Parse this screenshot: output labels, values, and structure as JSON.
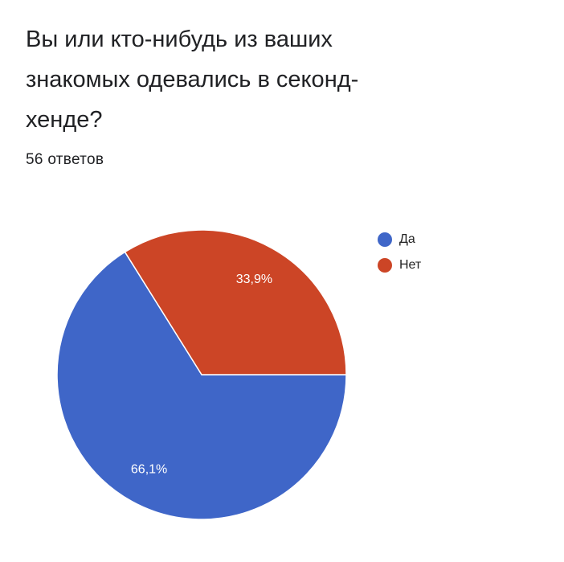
{
  "chart_data": {
    "type": "pie",
    "title": "Вы или кто-нибудь из ваших знакомых одевались в секонд-хенде?",
    "subtitle": "56 ответов",
    "categories": [
      "Да",
      "Нет"
    ],
    "values": [
      66.1,
      33.9
    ],
    "value_labels": [
      "66,1%",
      "33,9%"
    ],
    "colors": [
      "#3f66c8",
      "#cc4526"
    ],
    "legend": "right"
  }
}
